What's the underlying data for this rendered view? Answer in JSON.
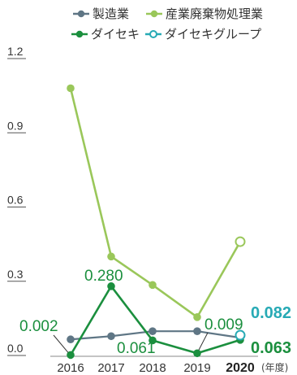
{
  "colors": {
    "manufacturing": "#5f7685",
    "waste_industry": "#9ac75a",
    "daiseki": "#1b8f3e",
    "group": "#27aab5",
    "axis": "#555555",
    "text": "#333333"
  },
  "chart_data": {
    "type": "line",
    "title": "",
    "xlabel": "",
    "ylabel": "",
    "unit": "(年度)",
    "x": [
      "2016",
      "2017",
      "2018",
      "2019",
      "2020"
    ],
    "ylim": [
      0,
      1.2
    ],
    "yticks": [
      "0.0",
      "0.3",
      "0.6",
      "0.9",
      "1.2"
    ],
    "grid": false,
    "legend_position": "top",
    "series": [
      {
        "name": "製造業",
        "key": "manufacturing",
        "marker": "filled",
        "values": [
          0.065,
          0.078,
          0.098,
          0.098,
          0.072
        ]
      },
      {
        "name": "産業廃棄物処理業",
        "key": "waste_industry",
        "marker": "filled-last-hollow",
        "values": [
          1.08,
          0.4,
          0.285,
          0.155,
          0.46
        ]
      },
      {
        "name": "ダイセキ",
        "key": "daiseki",
        "marker": "filled",
        "values": [
          0.002,
          0.28,
          0.061,
          0.009,
          0.063
        ]
      },
      {
        "name": "ダイセキグループ",
        "key": "group",
        "marker": "hollow",
        "values": [
          null,
          null,
          null,
          null,
          0.082
        ]
      }
    ],
    "data_labels": [
      {
        "series": "daiseki",
        "x": "2016",
        "text": "0.002"
      },
      {
        "series": "daiseki",
        "x": "2017",
        "text": "0.280"
      },
      {
        "series": "daiseki",
        "x": "2018",
        "text": "0.061"
      },
      {
        "series": "daiseki",
        "x": "2019",
        "text": "0.009"
      },
      {
        "series": "daiseki",
        "x": "2020",
        "text": "0.063"
      },
      {
        "series": "group",
        "x": "2020",
        "text": "0.082"
      }
    ]
  }
}
